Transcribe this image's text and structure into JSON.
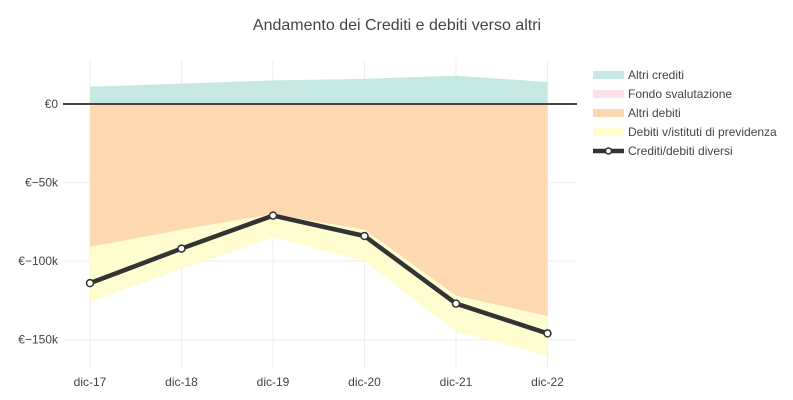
{
  "chart_data": {
    "type": "area",
    "title": "Andamento dei Crediti e debiti verso altri",
    "xlabel": "",
    "ylabel": "",
    "categories": [
      "dic-17",
      "dic-18",
      "dic-19",
      "dic-20",
      "dic-21",
      "dic-22"
    ],
    "ylim": [
      -168000,
      28000
    ],
    "yticks": [
      0,
      -50000,
      -100000,
      -150000
    ],
    "ytick_labels": [
      "€0",
      "€−50k",
      "€−100k",
      "€−150k"
    ],
    "grid": true,
    "legend_position": "right",
    "series": [
      {
        "name": "Altri crediti",
        "kind": "area",
        "color": "#c5e8e2",
        "values": [
          11000,
          13000,
          15000,
          16000,
          18000,
          14000
        ]
      },
      {
        "name": "Fondo svalutazione",
        "kind": "area",
        "color": "#fde0ec",
        "values": [
          0,
          0,
          0,
          0,
          0,
          0
        ]
      },
      {
        "name": "Altri debiti",
        "kind": "area",
        "color": "#fdd8b0",
        "values": [
          -91000,
          -80000,
          -70000,
          -80000,
          -122000,
          -135000
        ]
      },
      {
        "name": "Debiti v/istituti di previdenza",
        "kind": "area",
        "color": "#fdfdd0",
        "values": [
          -35000,
          -25000,
          -15000,
          -20000,
          -23000,
          -25000
        ]
      },
      {
        "name": "Crediti/debiti diversi",
        "kind": "line",
        "color": "#333333",
        "values": [
          -114000,
          -92000,
          -71000,
          -84000,
          -127000,
          -146000
        ]
      }
    ]
  }
}
